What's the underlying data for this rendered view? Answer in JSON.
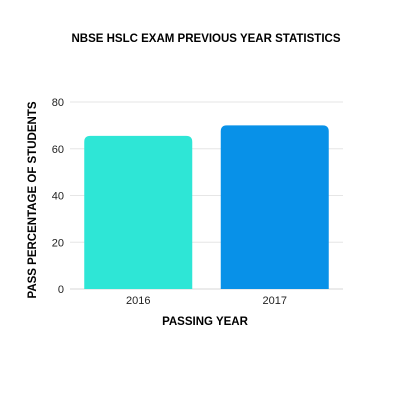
{
  "chart_data": {
    "type": "bar",
    "title": "NBSE HSLC EXAM PREVIOUS YEAR STATISTICS",
    "xlabel": "PASSING YEAR",
    "ylabel": "PASS PERCENTAGE OF STUDENTS",
    "categories": [
      "2016",
      "2017"
    ],
    "values": [
      65.5,
      70
    ],
    "colors": [
      "#2ee6d6",
      "#0891e8"
    ],
    "ylim": [
      0,
      80
    ],
    "yticks": [
      "0",
      "20",
      "40",
      "60",
      "80"
    ],
    "grid": true,
    "legend": "none"
  }
}
